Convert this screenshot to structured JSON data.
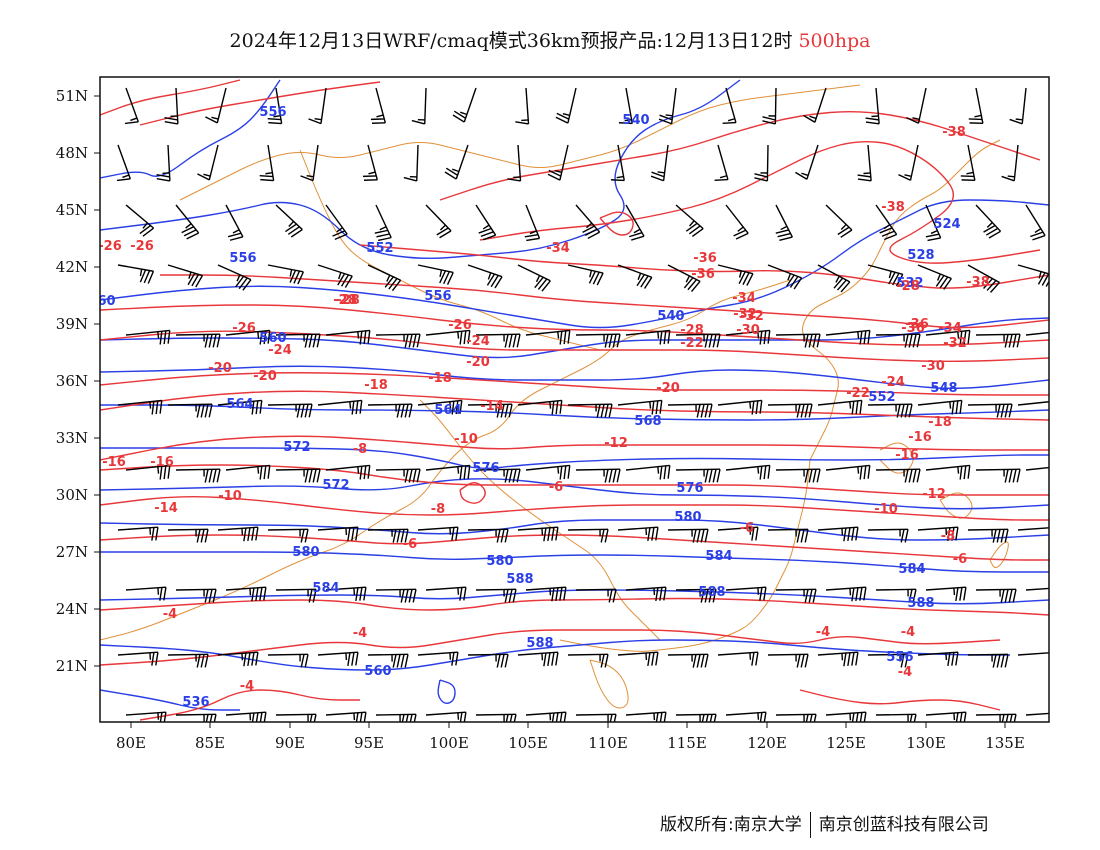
{
  "title": {
    "main": "2024年12月13日WRF/cmaq模式36km预报产品:12月13日12时",
    "level": "500hpa"
  },
  "colors": {
    "height_contour": "#2a3fe6",
    "temp_contour": "#e8373a",
    "coastline": "#e0913a",
    "wind_barb": "#000000"
  },
  "axes": {
    "lat_labels": [
      "51N",
      "48N",
      "45N",
      "42N",
      "39N",
      "36N",
      "33N",
      "30N",
      "27N",
      "24N",
      "21N"
    ],
    "lon_labels": [
      "80E",
      "85E",
      "90E",
      "95E",
      "100E",
      "105E",
      "110E",
      "115E",
      "120E",
      "125E",
      "130E",
      "135E"
    ]
  },
  "contour_labels": {
    "height": [
      "556",
      "540",
      "524",
      "528",
      "532",
      "556",
      "552",
      "556",
      "560",
      "540",
      "548",
      "552",
      "560",
      "564",
      "564",
      "568",
      "572",
      "572",
      "576",
      "576",
      "580",
      "580",
      "580",
      "584",
      "584",
      "584",
      "588",
      "588",
      "588",
      "588",
      "560",
      "556",
      "536"
    ],
    "temperature": [
      "-38",
      "-38",
      "-36",
      "-38",
      "-36",
      "-34",
      "-36",
      "-34",
      "-34",
      "-32",
      "-32",
      "-30",
      "-30",
      "-28",
      "-28",
      "-28",
      "-26",
      "-26",
      "-26",
      "-24",
      "-24",
      "-24",
      "-22",
      "-22",
      "-20",
      "-20",
      "-20",
      "-20",
      "-18",
      "-18",
      "-18",
      "-16",
      "-16",
      "-16",
      "-16",
      "-14",
      "-14",
      "-12",
      "-12",
      "-10",
      "-10",
      "-10",
      "-8",
      "-8",
      "-8",
      "-6",
      "-6",
      "-6",
      "-6",
      "-4",
      "-4",
      "-4",
      "-4",
      "-4",
      "-4",
      "-32",
      "-36",
      "-26",
      "-28"
    ]
  },
  "footer": {
    "left": "版权所有:南京大学",
    "right": "南京创蓝科技有限公司"
  }
}
